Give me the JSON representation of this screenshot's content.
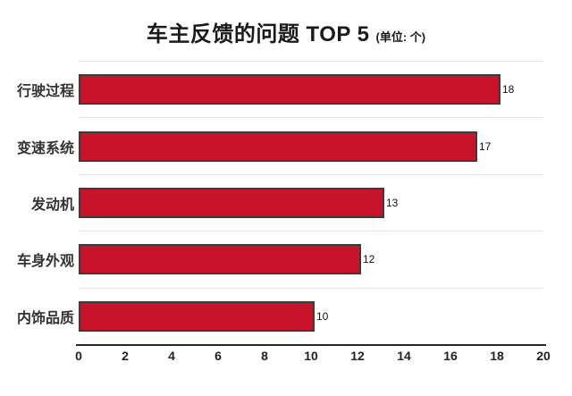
{
  "title": {
    "main": "车主反馈的问题 TOP 5",
    "unit": "(单位: 个)"
  },
  "chart_data": {
    "type": "bar",
    "orientation": "horizontal",
    "title": "车主反馈的问题 TOP 5",
    "unit_label": "(单位: 个)",
    "categories": [
      "行驶过程",
      "变速系统",
      "发动机",
      "车身外观",
      "内饰品质"
    ],
    "values": [
      18,
      17,
      13,
      12,
      10
    ],
    "value_labels": [
      "18",
      "17",
      "13",
      "12",
      "10"
    ],
    "xlabel": "",
    "ylabel": "",
    "xlim": [
      0,
      20
    ],
    "x_ticks": [
      "0",
      "2",
      "4",
      "6",
      "8",
      "10",
      "12",
      "14",
      "16",
      "18",
      "20"
    ],
    "grid": true,
    "legend": "none",
    "bar_color": "#c9132b",
    "bar_border_color": "#3c3c36",
    "gridline_color": "#e6e6e6",
    "axis_color": "#262626"
  }
}
